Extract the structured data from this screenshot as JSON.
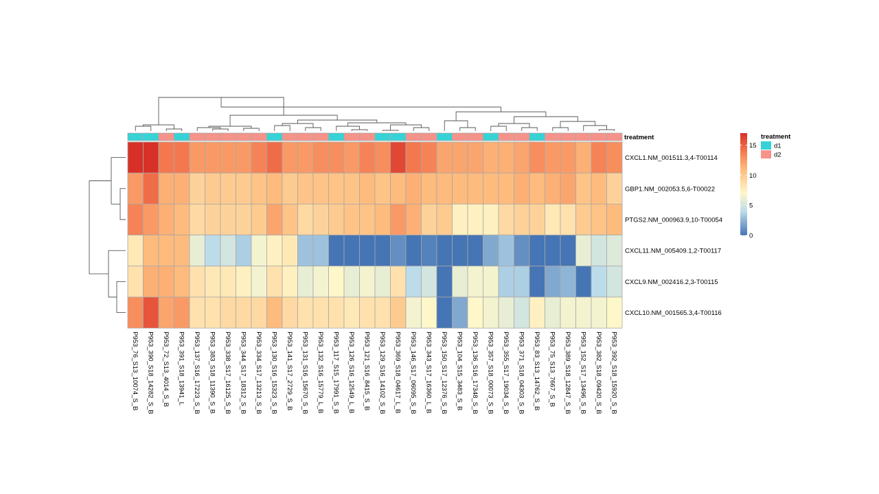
{
  "chart_data": {
    "type": "heatmap",
    "annotation_title": "treatment",
    "legend": {
      "title": "treatment",
      "groups": [
        {
          "label": "d1",
          "color": "#35d3d6"
        },
        {
          "label": "d2",
          "color": "#f5938b"
        }
      ]
    },
    "color_scale": {
      "ticks": [
        0,
        5,
        10,
        15
      ],
      "min": 0,
      "max": 17,
      "stops": [
        {
          "v": 0,
          "c": "#4575b4"
        },
        {
          "v": 4,
          "c": "#bcdcea"
        },
        {
          "v": 7,
          "c": "#fef7c9"
        },
        {
          "v": 11,
          "c": "#fdbb7d"
        },
        {
          "v": 14,
          "c": "#f4784f"
        },
        {
          "v": 17,
          "c": "#d73027"
        }
      ]
    },
    "columns": [
      {
        "label": "P953_76_S13_10074_S_B",
        "treatment": "d1"
      },
      {
        "label": "P953_390_S18_14282_S_B",
        "treatment": "d1"
      },
      {
        "label": "P953_72_S13_4014_S_B",
        "treatment": "d2"
      },
      {
        "label": "P953_391_S18_13941_L",
        "treatment": "d1"
      },
      {
        "label": "P953_137_S16_17223_S_B",
        "treatment": "d2"
      },
      {
        "label": "P953_383_S18_11390_S_B",
        "treatment": "d2"
      },
      {
        "label": "P953_338_S17_16125_S_B",
        "treatment": "d2"
      },
      {
        "label": "P953_344_S17_18312_S_B",
        "treatment": "d2"
      },
      {
        "label": "P953_334_S17_13213_S_B",
        "treatment": "d2"
      },
      {
        "label": "P953_130_S16_15323_S_B",
        "treatment": "d1"
      },
      {
        "label": "P953_141_S17_2729_S_B",
        "treatment": "d2"
      },
      {
        "label": "P953_131_S16_15670_S_B",
        "treatment": "d2"
      },
      {
        "label": "P953_132_S16_15779_L_B",
        "treatment": "d2"
      },
      {
        "label": "P953_117_S15_17991_S_B",
        "treatment": "d1"
      },
      {
        "label": "P953_126_S16_12549_L_B",
        "treatment": "d2"
      },
      {
        "label": "P953_121_S16_8415_S_B",
        "treatment": "d2"
      },
      {
        "label": "P953_129_S16_14102_S_B",
        "treatment": "d1"
      },
      {
        "label": "P953_369_S18_04617_L_B",
        "treatment": "d1"
      },
      {
        "label": "P953_146_S17_06095_S_B",
        "treatment": "d2"
      },
      {
        "label": "P953_343_S17_16360_L_B",
        "treatment": "d2"
      },
      {
        "label": "P953_150_S17_12376_S_B",
        "treatment": "d1"
      },
      {
        "label": "P953_104_S15_3483_S_B",
        "treatment": "d2"
      },
      {
        "label": "P953_136_S16_17348_S_B",
        "treatment": "d2"
      },
      {
        "label": "P953_357_S18_00073_S_B",
        "treatment": "d1"
      },
      {
        "label": "P953_355_S17_19034_S_B",
        "treatment": "d2"
      },
      {
        "label": "P953_371_S18_04303_S_B",
        "treatment": "d2"
      },
      {
        "label": "P953_83_S13_14762_S_B",
        "treatment": "d1"
      },
      {
        "label": "P953_75_S13_7667_S_B",
        "treatment": "d2"
      },
      {
        "label": "P953_389_S18_12847_S_B",
        "treatment": "d2"
      },
      {
        "label": "P953_152_S17_13496_S_B",
        "treatment": "d2"
      },
      {
        "label": "P953_382_S18_09420_S_B",
        "treatment": "d2"
      },
      {
        "label": "P953_392_S18_15920_S_B",
        "treatment": "d2"
      }
    ],
    "rows": [
      "CXCL1.NM_001511.3,4-T00114",
      "GBP1.NM_002053.5,6-T00022",
      "PTGS2.NM_000963.9,10-T00054",
      "CXCL11.NM_005409.1,2-T00117",
      "CXCL9.NM_002416.2,3-T00115",
      "CXCL10.NM_001565.3,4-T00116"
    ],
    "values": [
      [
        17,
        17,
        14,
        14,
        12.5,
        12.5,
        12.5,
        12.5,
        13.5,
        14.5,
        12.5,
        12.5,
        13,
        13,
        12.5,
        13.5,
        13,
        16,
        14,
        13.5,
        12,
        12,
        12,
        11.5,
        11.5,
        12,
        13,
        12.5,
        12.5,
        11.5,
        13.5,
        13
      ],
      [
        12.5,
        14.5,
        11.5,
        11.5,
        9.5,
        10,
        10,
        10,
        10.5,
        11,
        10,
        10.5,
        10.5,
        10.5,
        10.5,
        11,
        10.5,
        11,
        11.5,
        11,
        11,
        11,
        11,
        11,
        11,
        11.5,
        11,
        11.5,
        12,
        10.5,
        11,
        9.5
      ],
      [
        13.5,
        12.5,
        11.5,
        11,
        9,
        9.5,
        9.5,
        9.5,
        10,
        12,
        10.5,
        9,
        9.5,
        10,
        10.5,
        10.5,
        11,
        12.5,
        11.5,
        9.5,
        10,
        7.5,
        7.5,
        7.5,
        9,
        9.5,
        9.5,
        8,
        8.5,
        10,
        10.5,
        11
      ],
      [
        8,
        11,
        11,
        11,
        6,
        4,
        5,
        3.5,
        6.5,
        7.5,
        8,
        3,
        3,
        0,
        0,
        0,
        0,
        1,
        0,
        0.5,
        0,
        0,
        0,
        2,
        3,
        1,
        0,
        0,
        0,
        6,
        5,
        5.5
      ],
      [
        8.5,
        11.5,
        11.5,
        11,
        8.5,
        8,
        8,
        7.5,
        6.5,
        8.5,
        7.5,
        6,
        6.5,
        7,
        6,
        6.5,
        6,
        8.5,
        4,
        5,
        0,
        6,
        6.5,
        6.5,
        3.5,
        3.5,
        0,
        2,
        2.5,
        0,
        4,
        5
      ],
      [
        13,
        15.5,
        12,
        12.5,
        8.5,
        8.5,
        9,
        9,
        9,
        11,
        9,
        8.5,
        8.5,
        8.5,
        8,
        8.5,
        8.5,
        10,
        6.5,
        7,
        0,
        2,
        7,
        6.5,
        6,
        5,
        7.5,
        6,
        6.5,
        6.5,
        6.5,
        7
      ]
    ]
  }
}
